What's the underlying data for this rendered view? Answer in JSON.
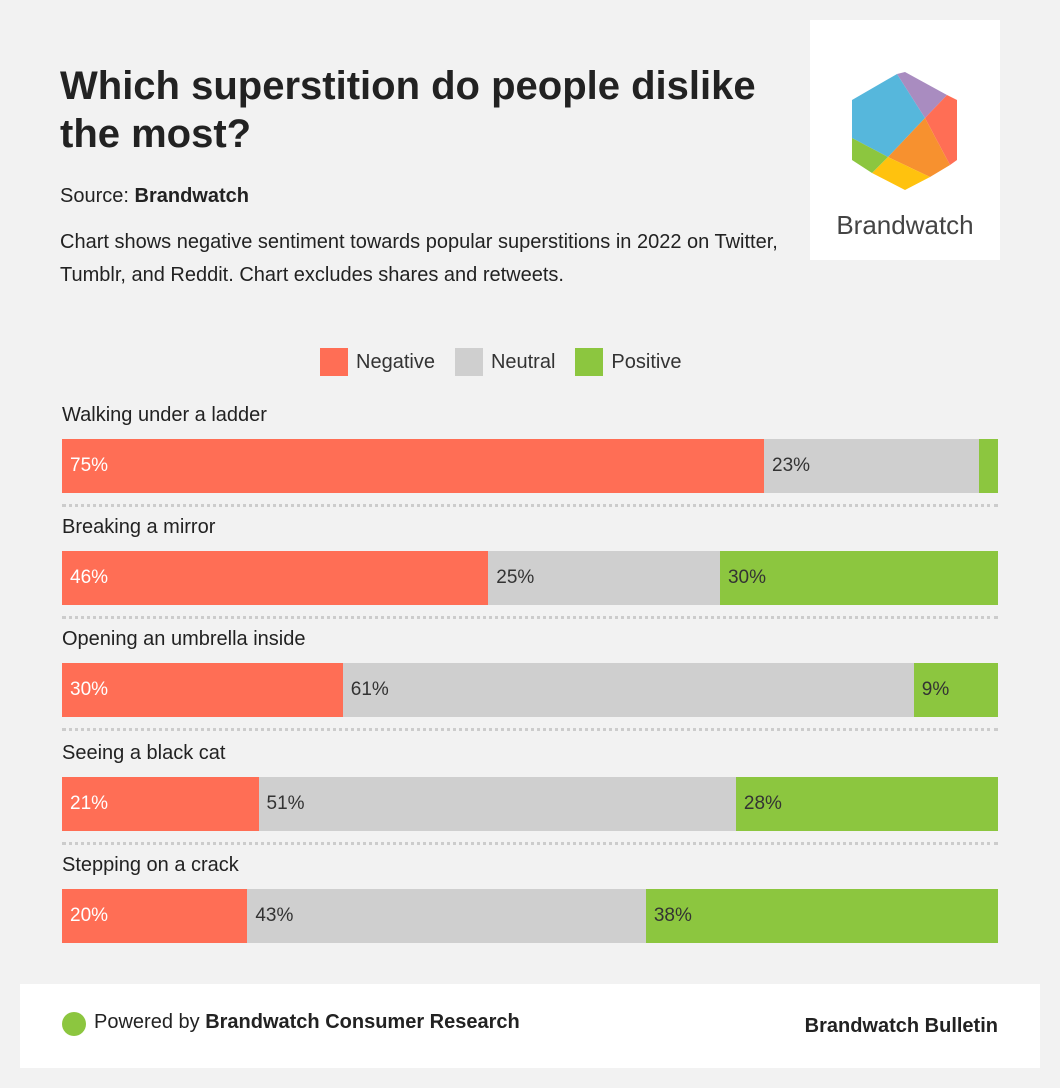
{
  "title": "Which superstition do people dislike the most?",
  "source_label": "Source:",
  "source_name": "Brandwatch",
  "description": "Chart shows negative sentiment towards popular superstitions in 2022 on Twitter, Tumblr, and Reddit. Chart excludes shares and retweets.",
  "logo_text": "Brandwatch",
  "footer": {
    "powered_by": "Powered by",
    "powered_name": "Brandwatch Consumer Research",
    "bulletin": "Brandwatch Bulletin"
  },
  "chart_data": {
    "type": "bar",
    "orientation": "horizontal",
    "stacked": true,
    "title": "Which superstition do people dislike the most?",
    "legend": {
      "placement": "top-center",
      "entries": [
        "Negative",
        "Neutral",
        "Positive"
      ]
    },
    "colors": {
      "Negative": "#ff6e55",
      "Neutral": "#cfcfcf",
      "Positive": "#8cc63f"
    },
    "categories": [
      "Walking under a ladder",
      "Breaking a mirror",
      "Opening an umbrella inside",
      "Seeing a black cat",
      "Stepping on a crack"
    ],
    "series": [
      {
        "name": "Negative",
        "values": [
          75,
          46,
          30,
          21,
          20
        ],
        "labels": [
          "75%",
          "46%",
          "30%",
          "21%",
          "20%"
        ]
      },
      {
        "name": "Neutral",
        "values": [
          23,
          25,
          61,
          51,
          43
        ],
        "labels": [
          "23%",
          "25%",
          "61%",
          "51%",
          "43%"
        ]
      },
      {
        "name": "Positive",
        "values": [
          2,
          30,
          9,
          28,
          38
        ],
        "labels": [
          "",
          "30%",
          "9%",
          "28%",
          "38%"
        ]
      }
    ],
    "xlim": [
      0,
      100
    ]
  }
}
